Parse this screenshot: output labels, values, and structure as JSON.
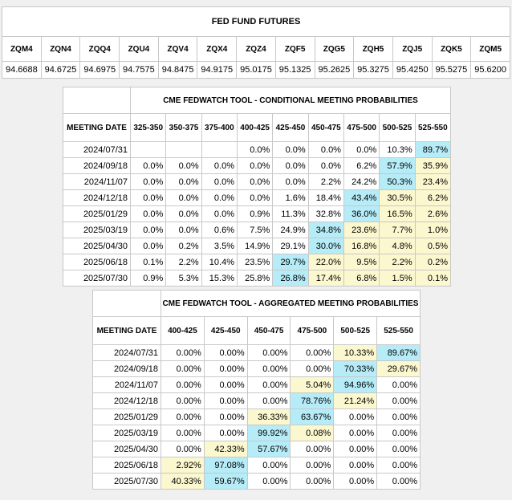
{
  "futures": {
    "title": "FED FUND FUTURES",
    "contracts": [
      "ZQM4",
      "ZQN4",
      "ZQQ4",
      "ZQU4",
      "ZQV4",
      "ZQX4",
      "ZQZ4",
      "ZQF5",
      "ZQG5",
      "ZQH5",
      "ZQJ5",
      "ZQK5",
      "ZQM5"
    ],
    "prices": [
      "94.6688",
      "94.6725",
      "94.6975",
      "94.7575",
      "94.8475",
      "94.9175",
      "95.0175",
      "95.1325",
      "95.2625",
      "95.3275",
      "95.4250",
      "95.5275",
      "95.6200"
    ]
  },
  "conditional": {
    "title": "CME FEDWATCH TOOL - CONDITIONAL MEETING PROBABILITIES",
    "date_header": "MEETING DATE",
    "ranges": [
      "325-350",
      "350-375",
      "375-400",
      "400-425",
      "425-450",
      "450-475",
      "475-500",
      "500-525",
      "525-550"
    ],
    "rows": [
      {
        "date": "2024/07/31",
        "cells": [
          {
            "v": ""
          },
          {
            "v": ""
          },
          {
            "v": ""
          },
          {
            "v": "0.0%"
          },
          {
            "v": "0.0%"
          },
          {
            "v": "0.0%"
          },
          {
            "v": "0.0%"
          },
          {
            "v": "10.3%"
          },
          {
            "v": "89.7%",
            "hl": "cyan"
          }
        ]
      },
      {
        "date": "2024/09/18",
        "cells": [
          {
            "v": "0.0%"
          },
          {
            "v": "0.0%"
          },
          {
            "v": "0.0%"
          },
          {
            "v": "0.0%"
          },
          {
            "v": "0.0%"
          },
          {
            "v": "0.0%"
          },
          {
            "v": "6.2%"
          },
          {
            "v": "57.9%",
            "hl": "cyan"
          },
          {
            "v": "35.9%",
            "hl": "yellow"
          }
        ]
      },
      {
        "date": "2024/11/07",
        "cells": [
          {
            "v": "0.0%"
          },
          {
            "v": "0.0%"
          },
          {
            "v": "0.0%"
          },
          {
            "v": "0.0%"
          },
          {
            "v": "0.0%"
          },
          {
            "v": "2.2%"
          },
          {
            "v": "24.2%"
          },
          {
            "v": "50.3%",
            "hl": "cyan"
          },
          {
            "v": "23.4%",
            "hl": "yellow"
          }
        ]
      },
      {
        "date": "2024/12/18",
        "cells": [
          {
            "v": "0.0%"
          },
          {
            "v": "0.0%"
          },
          {
            "v": "0.0%"
          },
          {
            "v": "0.0%"
          },
          {
            "v": "1.6%"
          },
          {
            "v": "18.4%"
          },
          {
            "v": "43.4%",
            "hl": "cyan"
          },
          {
            "v": "30.5%",
            "hl": "yellow"
          },
          {
            "v": "6.2%",
            "hl": "yellow"
          }
        ]
      },
      {
        "date": "2025/01/29",
        "cells": [
          {
            "v": "0.0%"
          },
          {
            "v": "0.0%"
          },
          {
            "v": "0.0%"
          },
          {
            "v": "0.9%"
          },
          {
            "v": "11.3%"
          },
          {
            "v": "32.8%"
          },
          {
            "v": "36.0%",
            "hl": "cyan"
          },
          {
            "v": "16.5%",
            "hl": "yellow"
          },
          {
            "v": "2.6%",
            "hl": "yellow"
          }
        ]
      },
      {
        "date": "2025/03/19",
        "cells": [
          {
            "v": "0.0%"
          },
          {
            "v": "0.0%"
          },
          {
            "v": "0.6%"
          },
          {
            "v": "7.5%"
          },
          {
            "v": "24.9%"
          },
          {
            "v": "34.8%",
            "hl": "cyan"
          },
          {
            "v": "23.6%",
            "hl": "yellow"
          },
          {
            "v": "7.7%",
            "hl": "yellow"
          },
          {
            "v": "1.0%",
            "hl": "yellow"
          }
        ]
      },
      {
        "date": "2025/04/30",
        "cells": [
          {
            "v": "0.0%"
          },
          {
            "v": "0.2%"
          },
          {
            "v": "3.5%"
          },
          {
            "v": "14.9%"
          },
          {
            "v": "29.1%"
          },
          {
            "v": "30.0%",
            "hl": "cyan"
          },
          {
            "v": "16.8%",
            "hl": "yellow"
          },
          {
            "v": "4.8%",
            "hl": "yellow"
          },
          {
            "v": "0.5%",
            "hl": "yellow"
          }
        ]
      },
      {
        "date": "2025/06/18",
        "cells": [
          {
            "v": "0.1%"
          },
          {
            "v": "2.2%"
          },
          {
            "v": "10.4%"
          },
          {
            "v": "23.5%"
          },
          {
            "v": "29.7%",
            "hl": "cyan"
          },
          {
            "v": "22.0%",
            "hl": "yellow"
          },
          {
            "v": "9.5%",
            "hl": "yellow"
          },
          {
            "v": "2.2%",
            "hl": "yellow"
          },
          {
            "v": "0.2%",
            "hl": "yellow"
          }
        ]
      },
      {
        "date": "2025/07/30",
        "cells": [
          {
            "v": "0.9%"
          },
          {
            "v": "5.3%"
          },
          {
            "v": "15.3%"
          },
          {
            "v": "25.8%"
          },
          {
            "v": "26.8%",
            "hl": "cyan"
          },
          {
            "v": "17.4%",
            "hl": "yellow"
          },
          {
            "v": "6.8%",
            "hl": "yellow"
          },
          {
            "v": "1.5%",
            "hl": "yellow"
          },
          {
            "v": "0.1%",
            "hl": "yellow"
          }
        ]
      }
    ]
  },
  "aggregated": {
    "title": "CME FEDWATCH TOOL - AGGREGATED MEETING PROBABILITIES",
    "date_header": "MEETING DATE",
    "ranges": [
      "400-425",
      "425-450",
      "450-475",
      "475-500",
      "500-525",
      "525-550"
    ],
    "rows": [
      {
        "date": "2024/07/31",
        "cells": [
          {
            "v": "0.00%"
          },
          {
            "v": "0.00%"
          },
          {
            "v": "0.00%"
          },
          {
            "v": "0.00%"
          },
          {
            "v": "10.33%",
            "hl": "yellow"
          },
          {
            "v": "89.67%",
            "hl": "cyan"
          }
        ]
      },
      {
        "date": "2024/09/18",
        "cells": [
          {
            "v": "0.00%"
          },
          {
            "v": "0.00%"
          },
          {
            "v": "0.00%"
          },
          {
            "v": "0.00%"
          },
          {
            "v": "70.33%",
            "hl": "cyan"
          },
          {
            "v": "29.67%",
            "hl": "yellow"
          }
        ]
      },
      {
        "date": "2024/11/07",
        "cells": [
          {
            "v": "0.00%"
          },
          {
            "v": "0.00%"
          },
          {
            "v": "0.00%"
          },
          {
            "v": "5.04%",
            "hl": "yellow"
          },
          {
            "v": "94.96%",
            "hl": "cyan"
          },
          {
            "v": "0.00%"
          }
        ]
      },
      {
        "date": "2024/12/18",
        "cells": [
          {
            "v": "0.00%"
          },
          {
            "v": "0.00%"
          },
          {
            "v": "0.00%"
          },
          {
            "v": "78.76%",
            "hl": "cyan"
          },
          {
            "v": "21.24%",
            "hl": "yellow"
          },
          {
            "v": "0.00%"
          }
        ]
      },
      {
        "date": "2025/01/29",
        "cells": [
          {
            "v": "0.00%"
          },
          {
            "v": "0.00%"
          },
          {
            "v": "36.33%",
            "hl": "yellow"
          },
          {
            "v": "63.67%",
            "hl": "cyan"
          },
          {
            "v": "0.00%"
          },
          {
            "v": "0.00%"
          }
        ]
      },
      {
        "date": "2025/03/19",
        "cells": [
          {
            "v": "0.00%"
          },
          {
            "v": "0.00%"
          },
          {
            "v": "99.92%",
            "hl": "cyan"
          },
          {
            "v": "0.08%",
            "hl": "yellow"
          },
          {
            "v": "0.00%"
          },
          {
            "v": "0.00%"
          }
        ]
      },
      {
        "date": "2025/04/30",
        "cells": [
          {
            "v": "0.00%"
          },
          {
            "v": "42.33%",
            "hl": "yellow"
          },
          {
            "v": "57.67%",
            "hl": "cyan"
          },
          {
            "v": "0.00%"
          },
          {
            "v": "0.00%"
          },
          {
            "v": "0.00%"
          }
        ]
      },
      {
        "date": "2025/06/18",
        "cells": [
          {
            "v": "2.92%",
            "hl": "yellow"
          },
          {
            "v": "97.08%",
            "hl": "cyan"
          },
          {
            "v": "0.00%"
          },
          {
            "v": "0.00%"
          },
          {
            "v": "0.00%"
          },
          {
            "v": "0.00%"
          }
        ]
      },
      {
        "date": "2025/07/30",
        "cells": [
          {
            "v": "40.33%",
            "hl": "yellow"
          },
          {
            "v": "59.67%",
            "hl": "cyan"
          },
          {
            "v": "0.00%"
          },
          {
            "v": "0.00%"
          },
          {
            "v": "0.00%"
          },
          {
            "v": "0.00%"
          }
        ]
      }
    ]
  },
  "colors": {
    "highlight_cyan": "#b6ecf7",
    "highlight_yellow": "#fbf7cf",
    "page_background": "#f0f0f0",
    "border": "#c8c8c8"
  }
}
